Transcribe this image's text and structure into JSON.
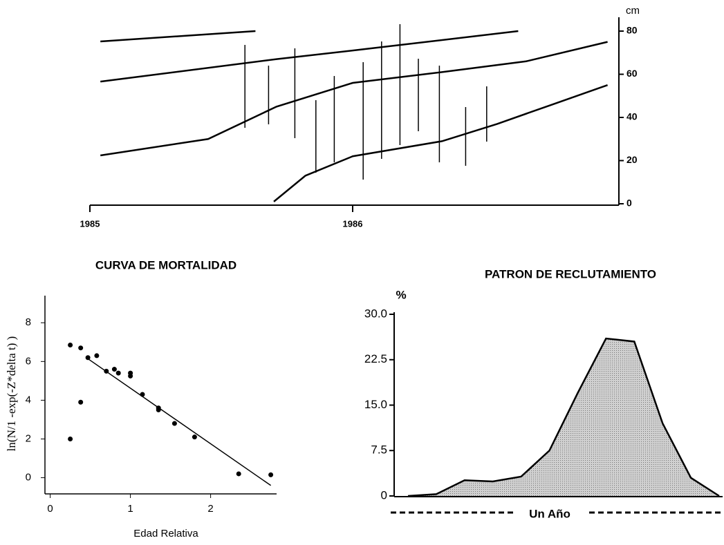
{
  "chart_data": [
    {
      "type": "line",
      "ylabel": "cm",
      "xlim": [
        1985,
        1987
      ],
      "xticks": [
        1985,
        1986
      ],
      "ylim": [
        0,
        85
      ],
      "yticks": [
        0,
        20,
        40,
        60,
        80
      ],
      "series": [
        {
          "color": "#000000",
          "x": [
            1985.04,
            1985.63
          ],
          "values": [
            75.2,
            80
          ]
        },
        {
          "color": "#000000",
          "x": [
            1985.04,
            1985.71,
            1986.0,
            1986.63
          ],
          "values": [
            56.6,
            67,
            71,
            80
          ]
        },
        {
          "color": "#000000",
          "x": [
            1985.04,
            1985.45,
            1985.71,
            1986.0,
            1986.34,
            1986.66,
            1986.97
          ],
          "values": [
            22.4,
            30,
            45,
            56,
            61,
            66,
            75
          ]
        },
        {
          "color": "#000000",
          "x": [
            1985.7,
            1985.82,
            1986.0,
            1986.34,
            1986.55,
            1986.76,
            1986.97
          ],
          "values": [
            1,
            13,
            22,
            29,
            37,
            46,
            55
          ]
        }
      ],
      "samples": {
        "x": [
          1985.59,
          1985.68,
          1985.78,
          1985.86,
          1985.93,
          1986.04,
          1986.11,
          1986.18,
          1986.25,
          1986.33,
          1986.43,
          1986.51
        ],
        "high": [
          73.6,
          64,
          72,
          48,
          59.2,
          65.6,
          75.2,
          83.2,
          67.2,
          64,
          44.8,
          54.4
        ],
        "low": [
          35.2,
          36.8,
          30.4,
          14.4,
          19.2,
          11.2,
          20.8,
          27.2,
          33.6,
          19.2,
          17.6,
          28.8
        ]
      }
    },
    {
      "type": "scatter",
      "title": "CURVA DE MORTALIDAD",
      "xlabel": "Edad Relativa",
      "ylabel": "ln(N/1 -exp(-Z*delta t) )",
      "xlim": [
        -0.1,
        2.9
      ],
      "xticks": [
        0,
        1,
        2
      ],
      "ylim": [
        -0.8,
        9.4
      ],
      "yticks": [
        0,
        2,
        4,
        6,
        8
      ],
      "color": "#000000",
      "x": [
        0.25,
        0.38,
        0.47,
        0.58,
        0.7,
        0.8,
        0.85,
        1.0,
        1.0,
        1.15,
        1.35,
        1.35,
        1.55,
        1.8,
        2.35,
        2.75,
        0.38,
        0.25
      ],
      "values": [
        6.85,
        6.7,
        6.2,
        6.3,
        5.5,
        5.6,
        5.4,
        5.4,
        5.25,
        4.3,
        3.6,
        3.5,
        2.8,
        2.1,
        0.2,
        0.15,
        3.9,
        2.0
      ],
      "fit": {
        "x": [
          0.45,
          2.75
        ],
        "values": [
          6.2,
          -0.4
        ]
      }
    },
    {
      "type": "area",
      "title": "PATRON DE RECLUTAMIENTO",
      "ylabel": "%",
      "annotation": "Un Año",
      "color": "#b8b8b8",
      "ylim": [
        0,
        30
      ],
      "yticks": [
        0,
        7.5,
        {
          "value": 15,
          "label": "15.0"
        },
        {
          "value": 22.5,
          "label": "22.5"
        },
        {
          "value": 30,
          "label": "30.0"
        }
      ],
      "categories": [
        null,
        null,
        null,
        null,
        null,
        null,
        null,
        null,
        null,
        null,
        null,
        null
      ],
      "values": [
        0,
        0.3,
        2.6,
        2.4,
        3.2,
        7.5,
        17,
        26,
        25.5,
        12,
        3,
        0
      ]
    }
  ]
}
